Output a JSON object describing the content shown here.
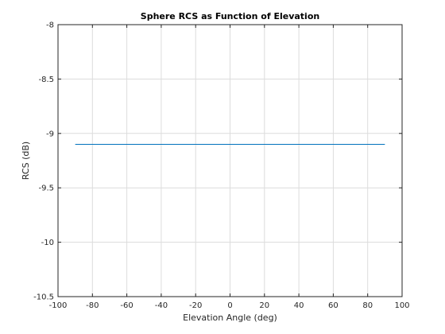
{
  "chart_data": {
    "type": "line",
    "title": "Sphere RCS as Function of Elevation",
    "xlabel": "Elevation Angle (deg)",
    "ylabel": "RCS (dB)",
    "xlim": [
      -100,
      100
    ],
    "ylim": [
      -10.5,
      -8
    ],
    "xticks": [
      -100,
      -80,
      -60,
      -40,
      -20,
      0,
      20,
      40,
      60,
      80,
      100
    ],
    "xtick_labels": [
      "-100",
      "-80",
      "-60",
      "-40",
      "-20",
      "0",
      "20",
      "40",
      "60",
      "80",
      "100"
    ],
    "yticks": [
      -10.5,
      -10,
      -9.5,
      -9,
      -8.5,
      -8
    ],
    "ytick_labels": [
      "-10.5",
      "-10",
      "-9.5",
      "-9",
      "-8.5",
      "-8"
    ],
    "grid": true,
    "series": [
      {
        "color": "#0072bd",
        "x": [
          -90,
          90
        ],
        "y": [
          -9.1,
          -9.1
        ]
      }
    ]
  },
  "colors": {
    "axes": "#262626",
    "grid": "#dcdcdc",
    "series": "#0072bd"
  }
}
